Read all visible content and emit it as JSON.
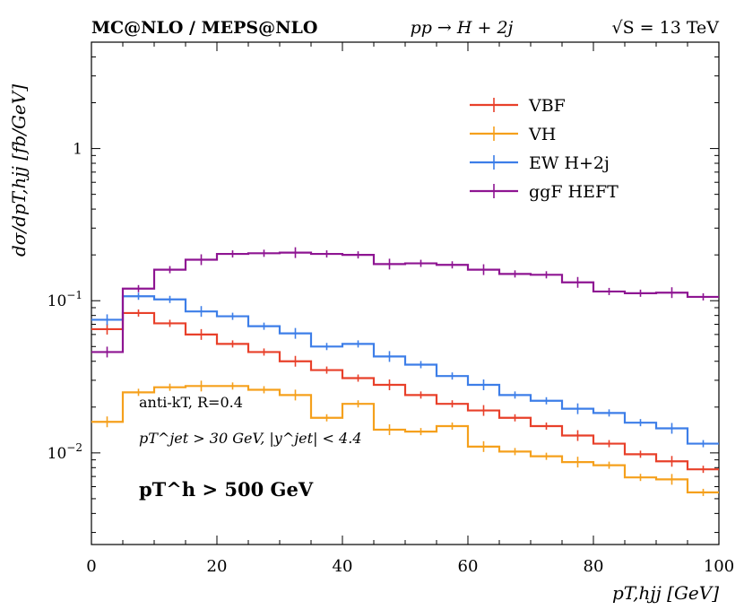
{
  "header": {
    "left": "MC@NLO / MEPS@NLO",
    "center": "pp → H + 2j",
    "right": "√S = 13 TeV"
  },
  "annotations": {
    "jets": "anti-kT, R=0.4",
    "cuts": "pT^jet > 30 GeV, |y^jet| < 4.4",
    "ptcut": "pT^h > 500 GeV"
  },
  "chart_data": {
    "type": "line",
    "title": "",
    "xlabel": "pT,hjj [GeV]",
    "ylabel": "dσ/dpT,hjj [fb/GeV]",
    "xlim": [
      0,
      100
    ],
    "ylim": [
      0.0025,
      5
    ],
    "yscale": "log",
    "xticks": [
      0,
      20,
      40,
      60,
      80,
      100
    ],
    "xtick_labels": [
      "0",
      "20",
      "40",
      "60",
      "80",
      "100"
    ],
    "ytick_labels": [
      {
        "value": 1,
        "label": "1"
      },
      {
        "value": 0.1,
        "label": "10^-1"
      },
      {
        "value": 0.01,
        "label": "10^-2"
      }
    ],
    "legend_position": "top-right",
    "bin_edges": [
      0,
      5,
      10,
      15,
      20,
      25,
      30,
      35,
      40,
      45,
      50,
      55,
      60,
      65,
      70,
      75,
      80,
      85,
      90,
      95,
      100
    ],
    "series": [
      {
        "name": "VBF",
        "color": "#e8402a",
        "values": [
          0.065,
          0.083,
          0.071,
          0.06,
          0.052,
          0.046,
          0.04,
          0.035,
          0.031,
          0.028,
          0.024,
          0.021,
          0.019,
          0.017,
          0.015,
          0.013,
          0.0115,
          0.0098,
          0.0088,
          0.0078
        ]
      },
      {
        "name": "VH",
        "color": "#f5a01c",
        "values": [
          0.016,
          0.025,
          0.027,
          0.0275,
          0.0275,
          0.026,
          0.024,
          0.017,
          0.021,
          0.0142,
          0.0138,
          0.015,
          0.011,
          0.0102,
          0.0095,
          0.0087,
          0.0083,
          0.0069,
          0.0067,
          0.0055
        ]
      },
      {
        "name": "EW H+2j",
        "color": "#3d7ee8",
        "values": [
          0.075,
          0.107,
          0.102,
          0.085,
          0.079,
          0.068,
          0.061,
          0.05,
          0.052,
          0.043,
          0.038,
          0.032,
          0.028,
          0.024,
          0.022,
          0.0195,
          0.0183,
          0.0158,
          0.0145,
          0.0115
        ]
      },
      {
        "name": "ggF HEFT",
        "color": "#8e1592",
        "values": [
          0.046,
          0.12,
          0.16,
          0.186,
          0.203,
          0.205,
          0.207,
          0.203,
          0.2,
          0.174,
          0.176,
          0.172,
          0.16,
          0.15,
          0.148,
          0.132,
          0.115,
          0.112,
          0.113,
          0.106
        ]
      }
    ]
  }
}
